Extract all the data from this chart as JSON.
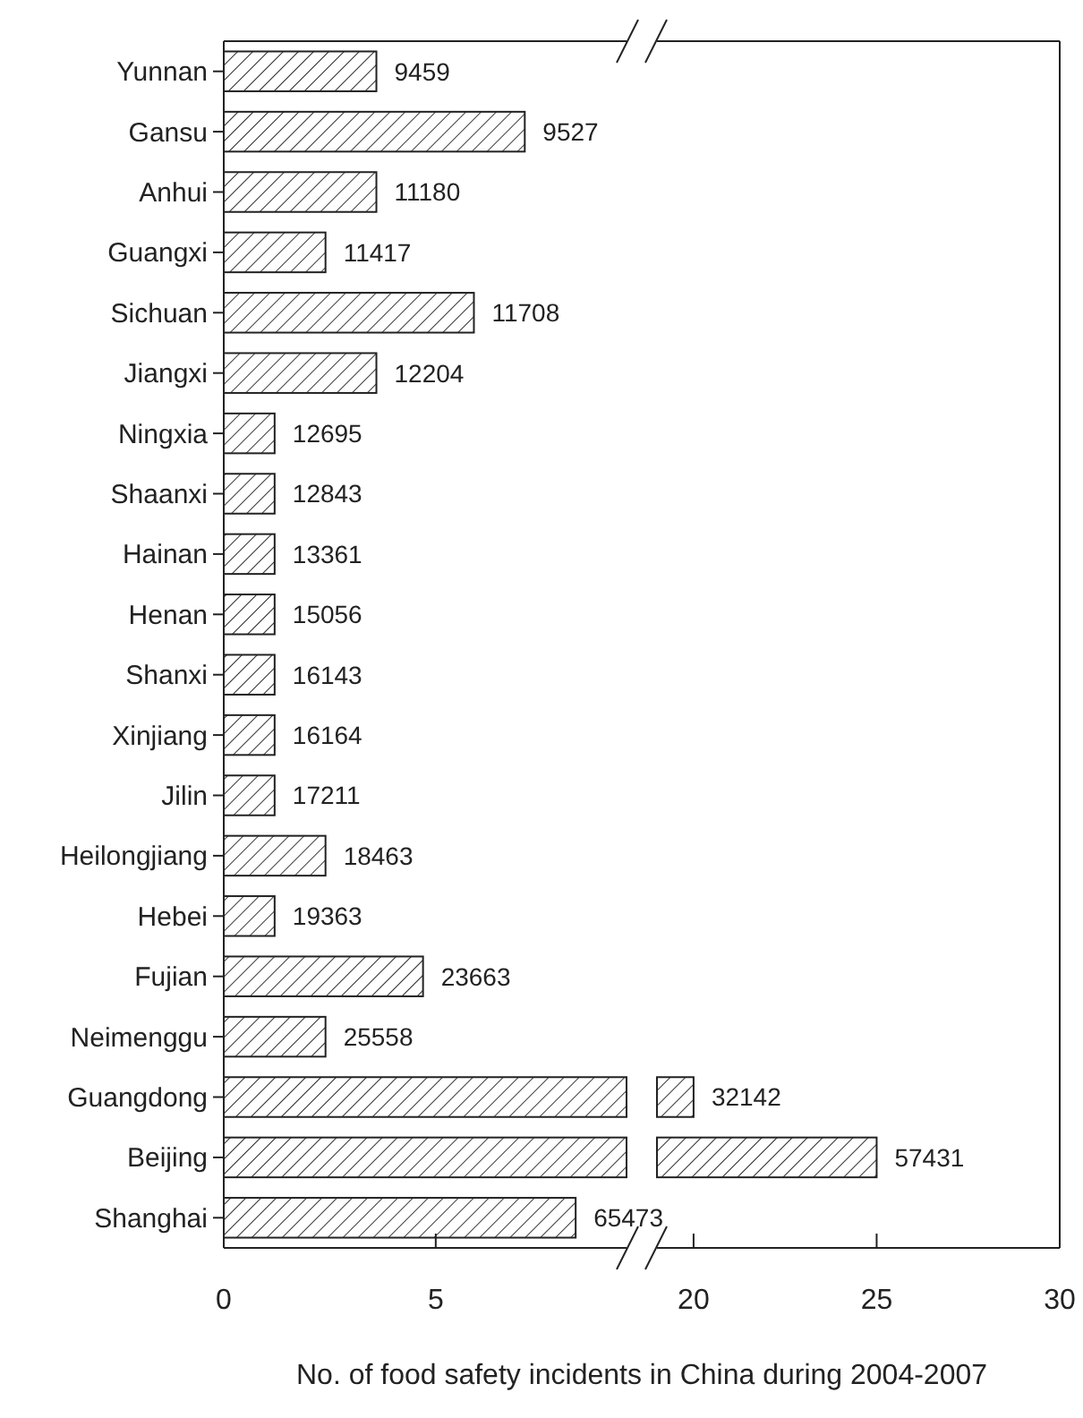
{
  "chart_data": [
    {
      "type": "bar",
      "orientation": "horizontal",
      "xlabel": "No. of food safety incidents in China during 2004-2007",
      "categories": [
        "Yunnan",
        "Gansu",
        "Anhui",
        "Guangxi",
        "Sichuan",
        "Jiangxi",
        "Ningxia",
        "Shaanxi",
        "Hainan",
        "Henan",
        "Shanxi",
        "Xinjiang",
        "Jilin",
        "Heilongjiang",
        "Hebei",
        "Fujian",
        "Neimenggu",
        "Guangdong",
        "Beijing",
        "Shanghai"
      ],
      "values": [
        3.6,
        7.1,
        3.6,
        2.4,
        5.9,
        3.6,
        1.2,
        1.2,
        1.2,
        1.2,
        1.2,
        1.2,
        1.2,
        2.4,
        1.2,
        4.7,
        2.4,
        9.5,
        9.5,
        8.3
      ],
      "annotations": [
        {
          "text": "9459",
          "x": 3.6,
          "y": "Yunnan"
        },
        {
          "text": "9527",
          "x": 7.1,
          "y": "Gansu"
        },
        {
          "text": "11180",
          "x": 3.6,
          "y": "Anhui"
        },
        {
          "text": "11417",
          "x": 2.4,
          "y": "Guangxi"
        },
        {
          "text": "11708",
          "x": 5.9,
          "y": "Sichuan"
        },
        {
          "text": "12204",
          "x": 3.6,
          "y": "Jiangxi"
        },
        {
          "text": "12695",
          "x": 1.2,
          "y": "Ningxia"
        },
        {
          "text": "12843",
          "x": 1.2,
          "y": "Shaanxi"
        },
        {
          "text": "13361",
          "x": 1.2,
          "y": "Hainan"
        },
        {
          "text": "15056",
          "x": 1.2,
          "y": "Henan"
        },
        {
          "text": "16143",
          "x": 1.2,
          "y": "Shanxi"
        },
        {
          "text": "16164",
          "x": 1.2,
          "y": "Xinjiang"
        },
        {
          "text": "17211",
          "x": 1.2,
          "y": "Jilin"
        },
        {
          "text": "18463",
          "x": 2.4,
          "y": "Heilongjiang"
        },
        {
          "text": "19363",
          "x": 1.2,
          "y": "Hebei"
        },
        {
          "text": "23663",
          "x": 4.7,
          "y": "Fujian"
        },
        {
          "text": "25558",
          "x": 2.4,
          "y": "Neimenggu"
        },
        {
          "text": "65473",
          "x": 8.3,
          "y": "Shanghai"
        }
      ],
      "color": "#ffffff",
      "xlim": [
        0,
        9.5
      ],
      "xticks": [
        0,
        5
      ],
      "grid": false
    },
    {
      "type": "bar",
      "orientation": "horizontal",
      "categories": [
        "Yunnan",
        "Gansu",
        "Anhui",
        "Guangxi",
        "Sichuan",
        "Jiangxi",
        "Ningxia",
        "Shaanxi",
        "Hainan",
        "Henan",
        "Shanxi",
        "Xinjiang",
        "Jilin",
        "Heilongjiang",
        "Hebei",
        "Fujian",
        "Neimenggu",
        "Guangdong",
        "Beijing",
        "Shanghai"
      ],
      "values": [
        null,
        null,
        null,
        null,
        null,
        null,
        null,
        null,
        null,
        null,
        null,
        null,
        null,
        null,
        null,
        null,
        null,
        1,
        6,
        null
      ],
      "base": [
        null,
        null,
        null,
        null,
        null,
        null,
        null,
        null,
        null,
        null,
        null,
        null,
        null,
        null,
        null,
        null,
        null,
        19,
        19,
        null
      ],
      "annotations": [
        {
          "text": "32142",
          "x": 20,
          "y": "Guangdong"
        },
        {
          "text": "57431",
          "x": 25,
          "y": "Beijing"
        }
      ],
      "color": "#ffffff",
      "xlim": [
        19,
        30
      ],
      "xticks": [
        20,
        25,
        30
      ],
      "tick_labels": "x",
      "grid": false
    }
  ]
}
